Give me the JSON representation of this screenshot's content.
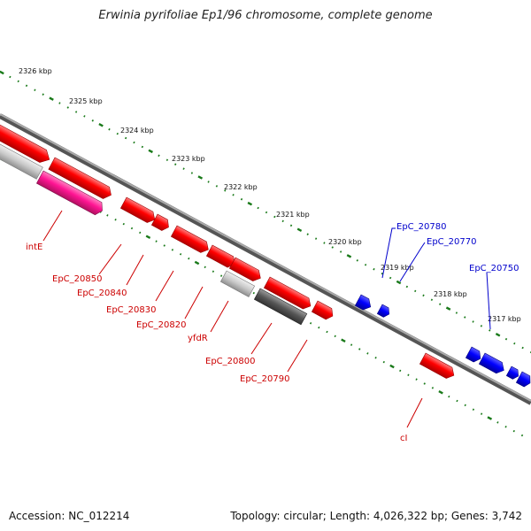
{
  "title": "Erwinia pyrifoliae Ep1/96 chromosome, complete genome",
  "footer": {
    "accession": "Accession: NC_012214",
    "summary": "Topology: circular; Length: 4,026,322 bp; Genes: 3,742"
  },
  "scale_labels": [
    "2326 kbp",
    "2325 kbp",
    "2324 kbp",
    "2323 kbp",
    "2322 kbp",
    "2321 kbp",
    "2320 kbp",
    "2319 kbp",
    "2318 kbp",
    "2317 kbp"
  ],
  "gene_labels": {
    "red": [
      "intE",
      "EpC_20850",
      "EpC_20840",
      "EpC_20830",
      "EpC_20820",
      "yfdR",
      "EpC_20800",
      "EpC_20790",
      "cI"
    ],
    "blue": [
      "EpC_20780",
      "EpC_20770",
      "EpC_20750"
    ]
  },
  "colors": {
    "red_gene": "#ff0000",
    "pink_gene": "#ff1493",
    "light_grey_gene": "#c8c8c8",
    "dark_grey_gene": "#555555",
    "blue_gene": "#0000ff",
    "scale_ticks": "#1a7a1a",
    "backbone": "#808080"
  }
}
